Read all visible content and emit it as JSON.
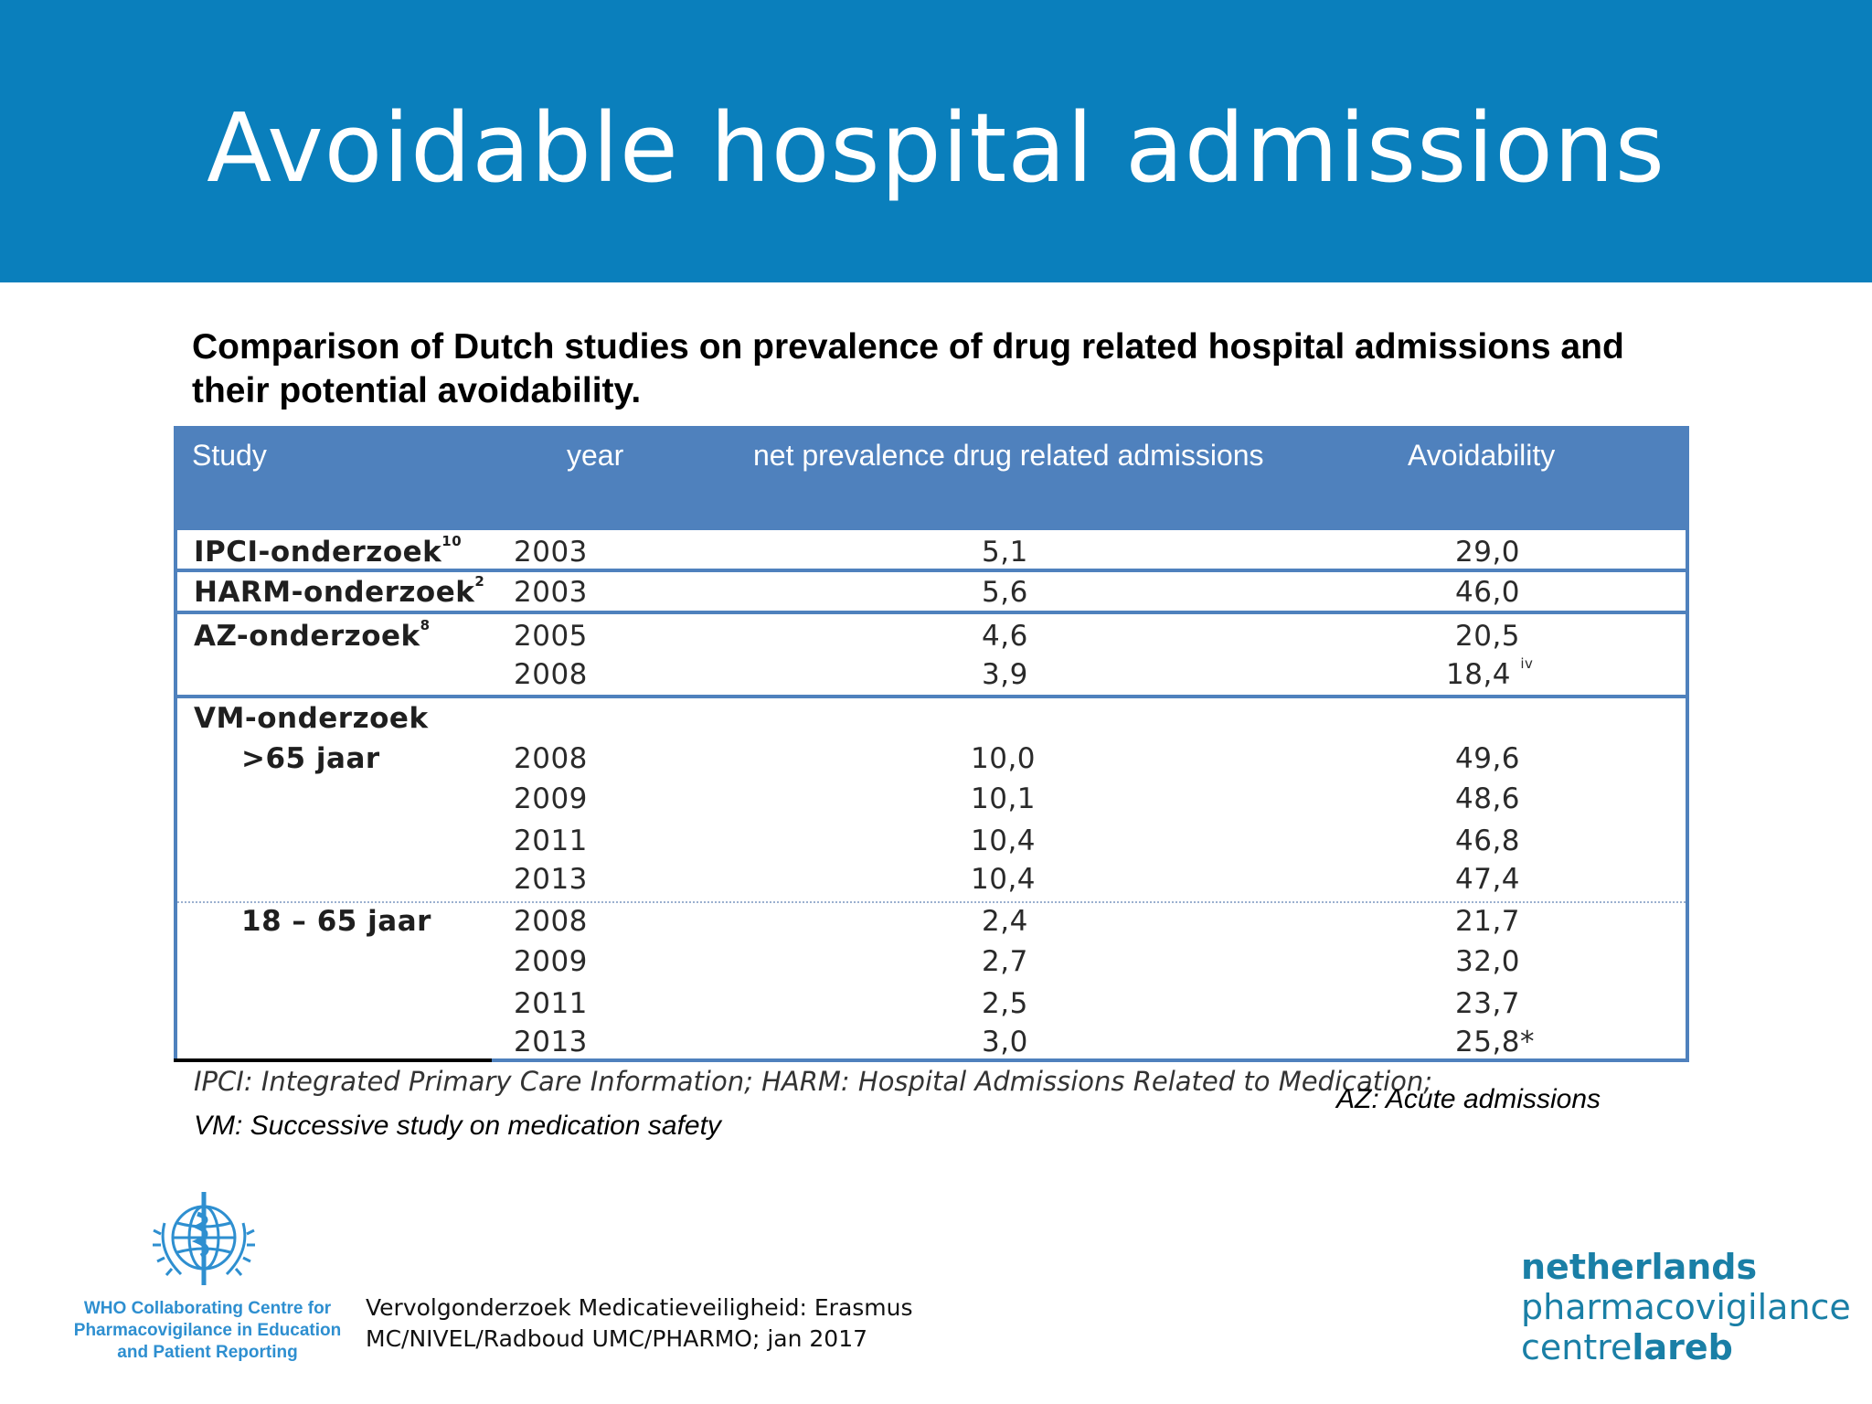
{
  "slide": {
    "title": "Avoidable hospital admissions",
    "subtitle": "Comparison of Dutch studies on prevalence of drug related hospital admissions and their potential avoidability."
  },
  "table": {
    "headers": {
      "study": "Study",
      "year": "year",
      "prevalence": "net prevalence drug related admissions",
      "avoidability": "Avoidability"
    },
    "rows": [
      {
        "study": "IPCI-onderzoek",
        "sup": "10",
        "year": "2003",
        "prevalence": "5,1",
        "avoidability": "29,0"
      },
      {
        "study": "HARM-onderzoek",
        "sup": "2",
        "year": "2003",
        "prevalence": "5,6",
        "avoidability": "46,0"
      },
      {
        "study": "AZ-onderzoek",
        "sup": "8",
        "year": "2005",
        "prevalence": "4,6",
        "avoidability": "20,5"
      },
      {
        "year": "2008",
        "prevalence": "3,9",
        "avoidability": "18,4",
        "sup": "iv"
      },
      {
        "study": "VM-onderzoek"
      },
      {
        "sub": ">65 jaar",
        "year": "2008",
        "prevalence": "10,0",
        "avoidability": "49,6"
      },
      {
        "year": "2009",
        "prevalence": "10,1",
        "avoidability": "48,6"
      },
      {
        "year": "2011",
        "prevalence": "10,4",
        "avoidability": "46,8"
      },
      {
        "year": "2013",
        "prevalence": "10,4",
        "avoidability": "47,4"
      },
      {
        "sub": "18 – 65 jaar",
        "year": "2008",
        "prevalence": "2,4",
        "avoidability": "21,7"
      },
      {
        "year": "2009",
        "prevalence": "2,7",
        "avoidability": "32,0"
      },
      {
        "year": "2011",
        "prevalence": "2,5",
        "avoidability": "23,7"
      },
      {
        "year": "2013",
        "prevalence": "3,0",
        "avoidability": "25,8*"
      }
    ]
  },
  "footnotes": {
    "ipci_harm": "IPCI: Integrated Primary Care Information; HARM: Hospital Admissions Related to Medication;",
    "az": "AZ: Acute admissions",
    "vm": "VM: Successive study on medication safety"
  },
  "footer": {
    "who_line1": "WHO Collaborating Centre for",
    "who_line2": "Pharmacovigilance in Education",
    "who_line3": "and Patient Reporting",
    "source_line1": "Vervolgonderzoek Medicatieveiligheid: Erasmus",
    "source_line2": "MC/NIVEL/Radboud UMC/PHARMO; jan 2017",
    "lareb_line1": "netherlands",
    "lareb_line2": "pharmacovigilance",
    "lareb_line3a": "centre",
    "lareb_line3b": "lareb"
  },
  "colors": {
    "header_band": "#0a7fbc",
    "table_header": "#4f81bd",
    "lareb": "#1a7fa6",
    "who": "#2e8fd0"
  }
}
